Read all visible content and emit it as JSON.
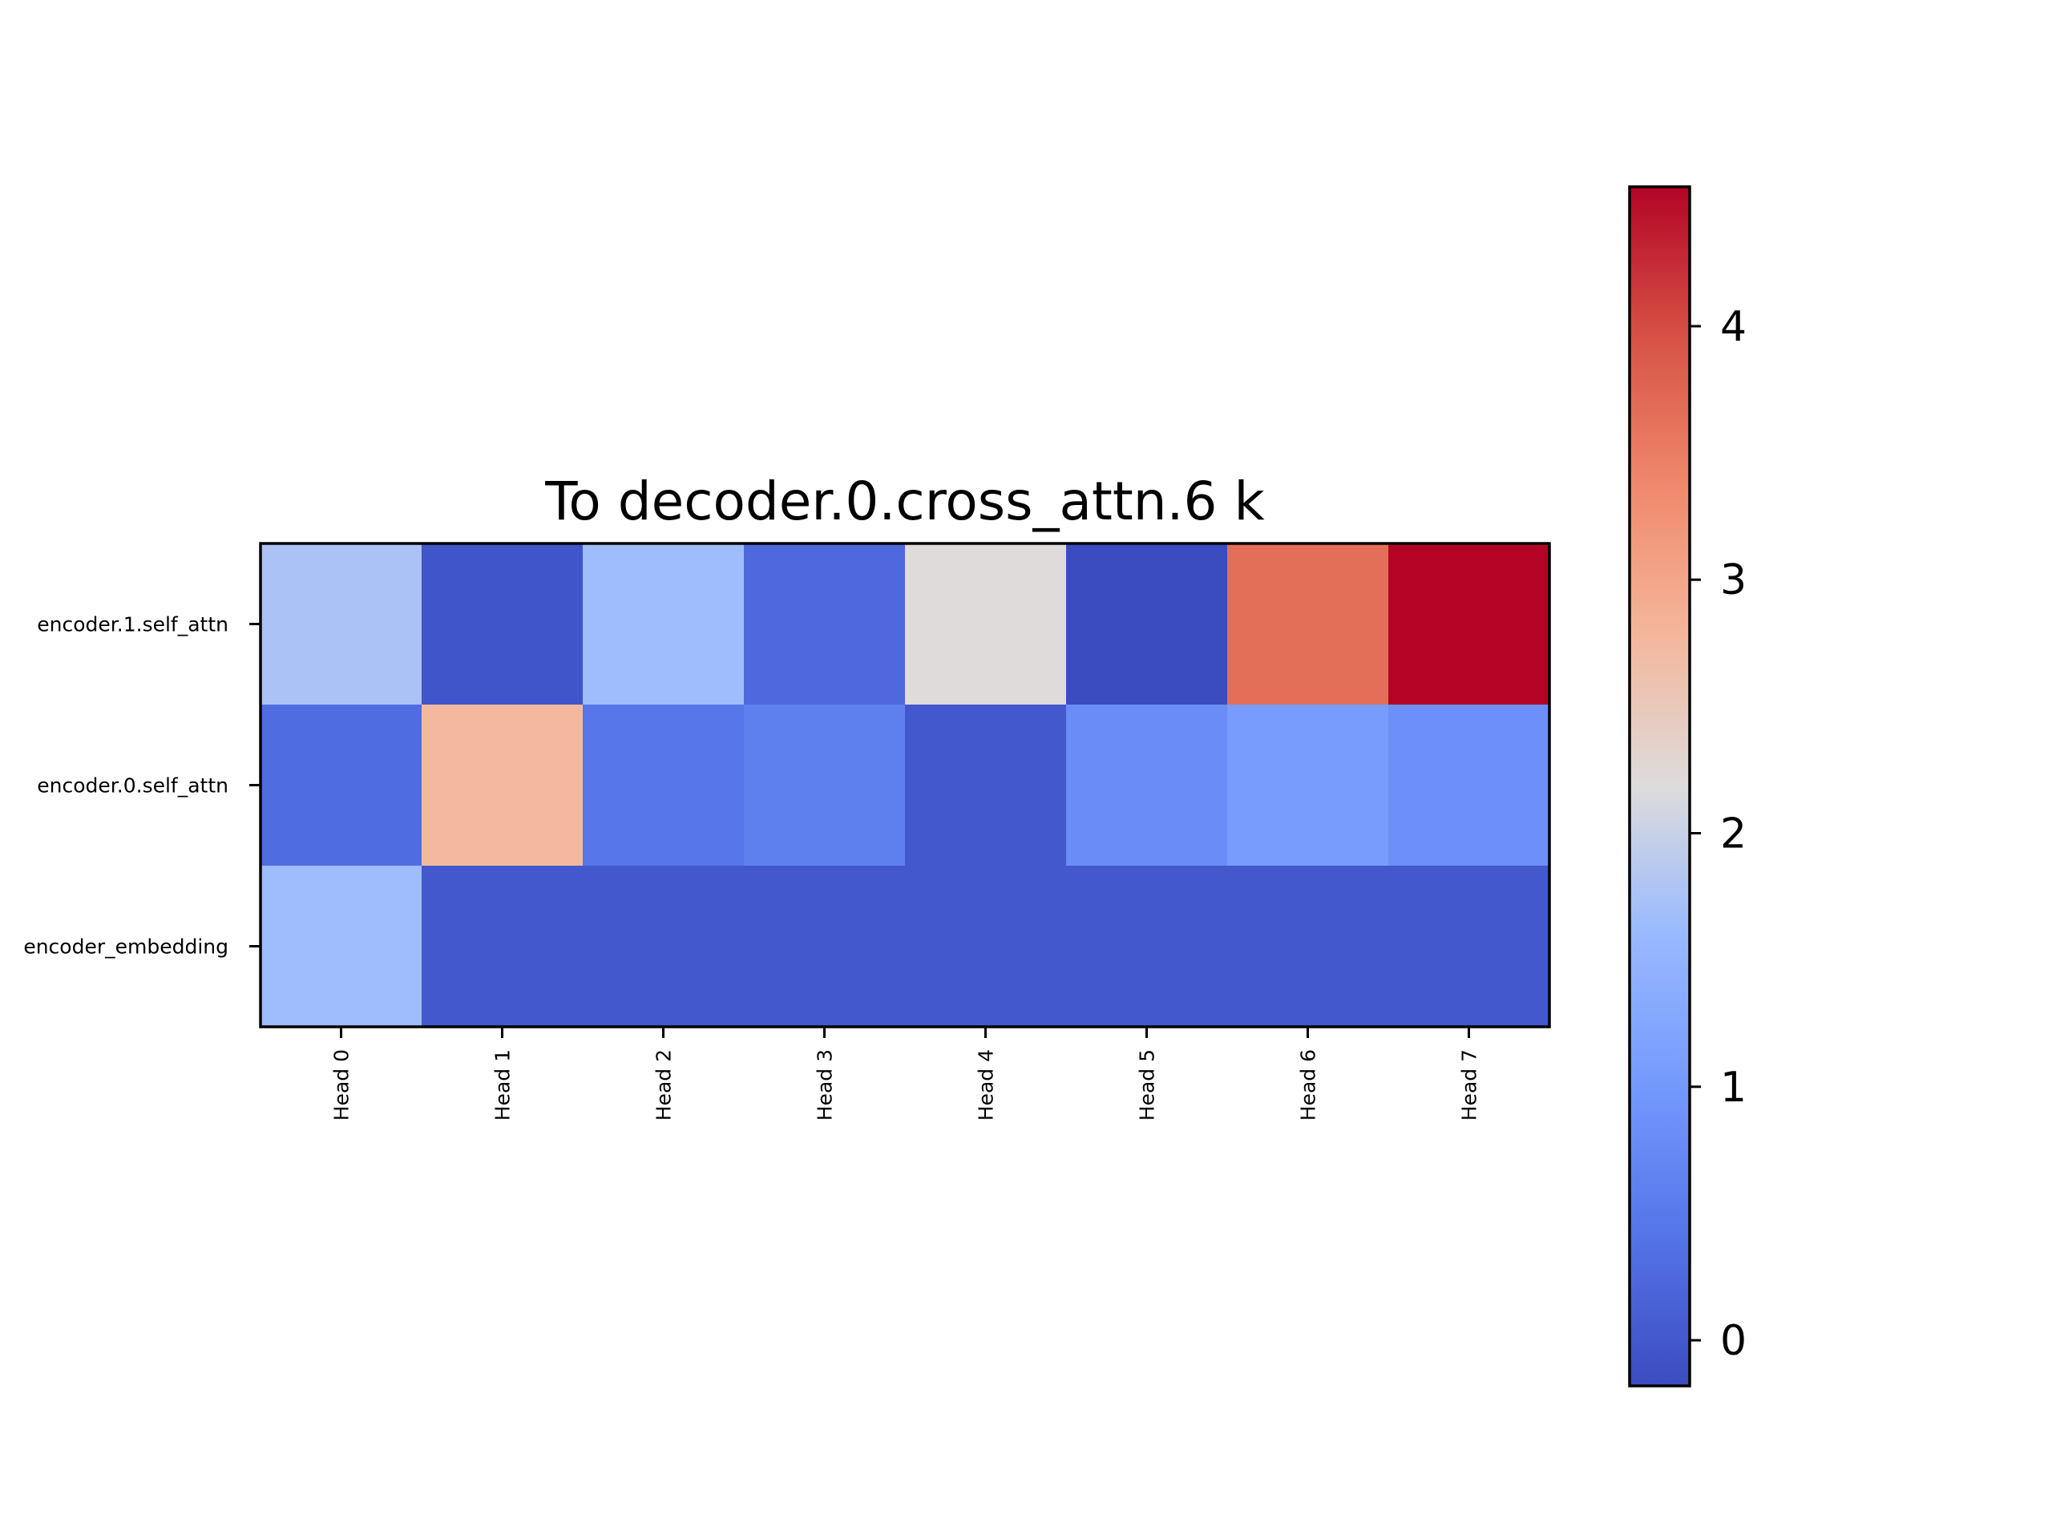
{
  "chart_data": {
    "type": "heatmap",
    "title": "To decoder.0.cross_attn.6 k",
    "rows": [
      "encoder.1.self_attn",
      "encoder.0.self_attn",
      "encoder_embedding"
    ],
    "columns": [
      "Head 0",
      "Head 1",
      "Head 2",
      "Head 3",
      "Head 4",
      "Head 5",
      "Head 6",
      "Head 7"
    ],
    "values": [
      [
        1.75,
        -0.05,
        1.65,
        0.25,
        2.2,
        -0.18,
        3.65,
        4.55
      ],
      [
        0.3,
        2.75,
        0.45,
        0.6,
        0.0,
        0.8,
        1.05,
        0.85
      ],
      [
        1.65,
        0.0,
        0.0,
        0.0,
        0.0,
        0.0,
        0.0,
        0.0
      ]
    ],
    "colormap": "coolwarm",
    "color_range": [
      -0.18,
      4.55
    ],
    "colorbar_ticks": [
      0,
      1,
      2,
      3,
      4
    ],
    "colorbar_tick_labels": [
      "0",
      "1",
      "2",
      "3",
      "4"
    ]
  }
}
